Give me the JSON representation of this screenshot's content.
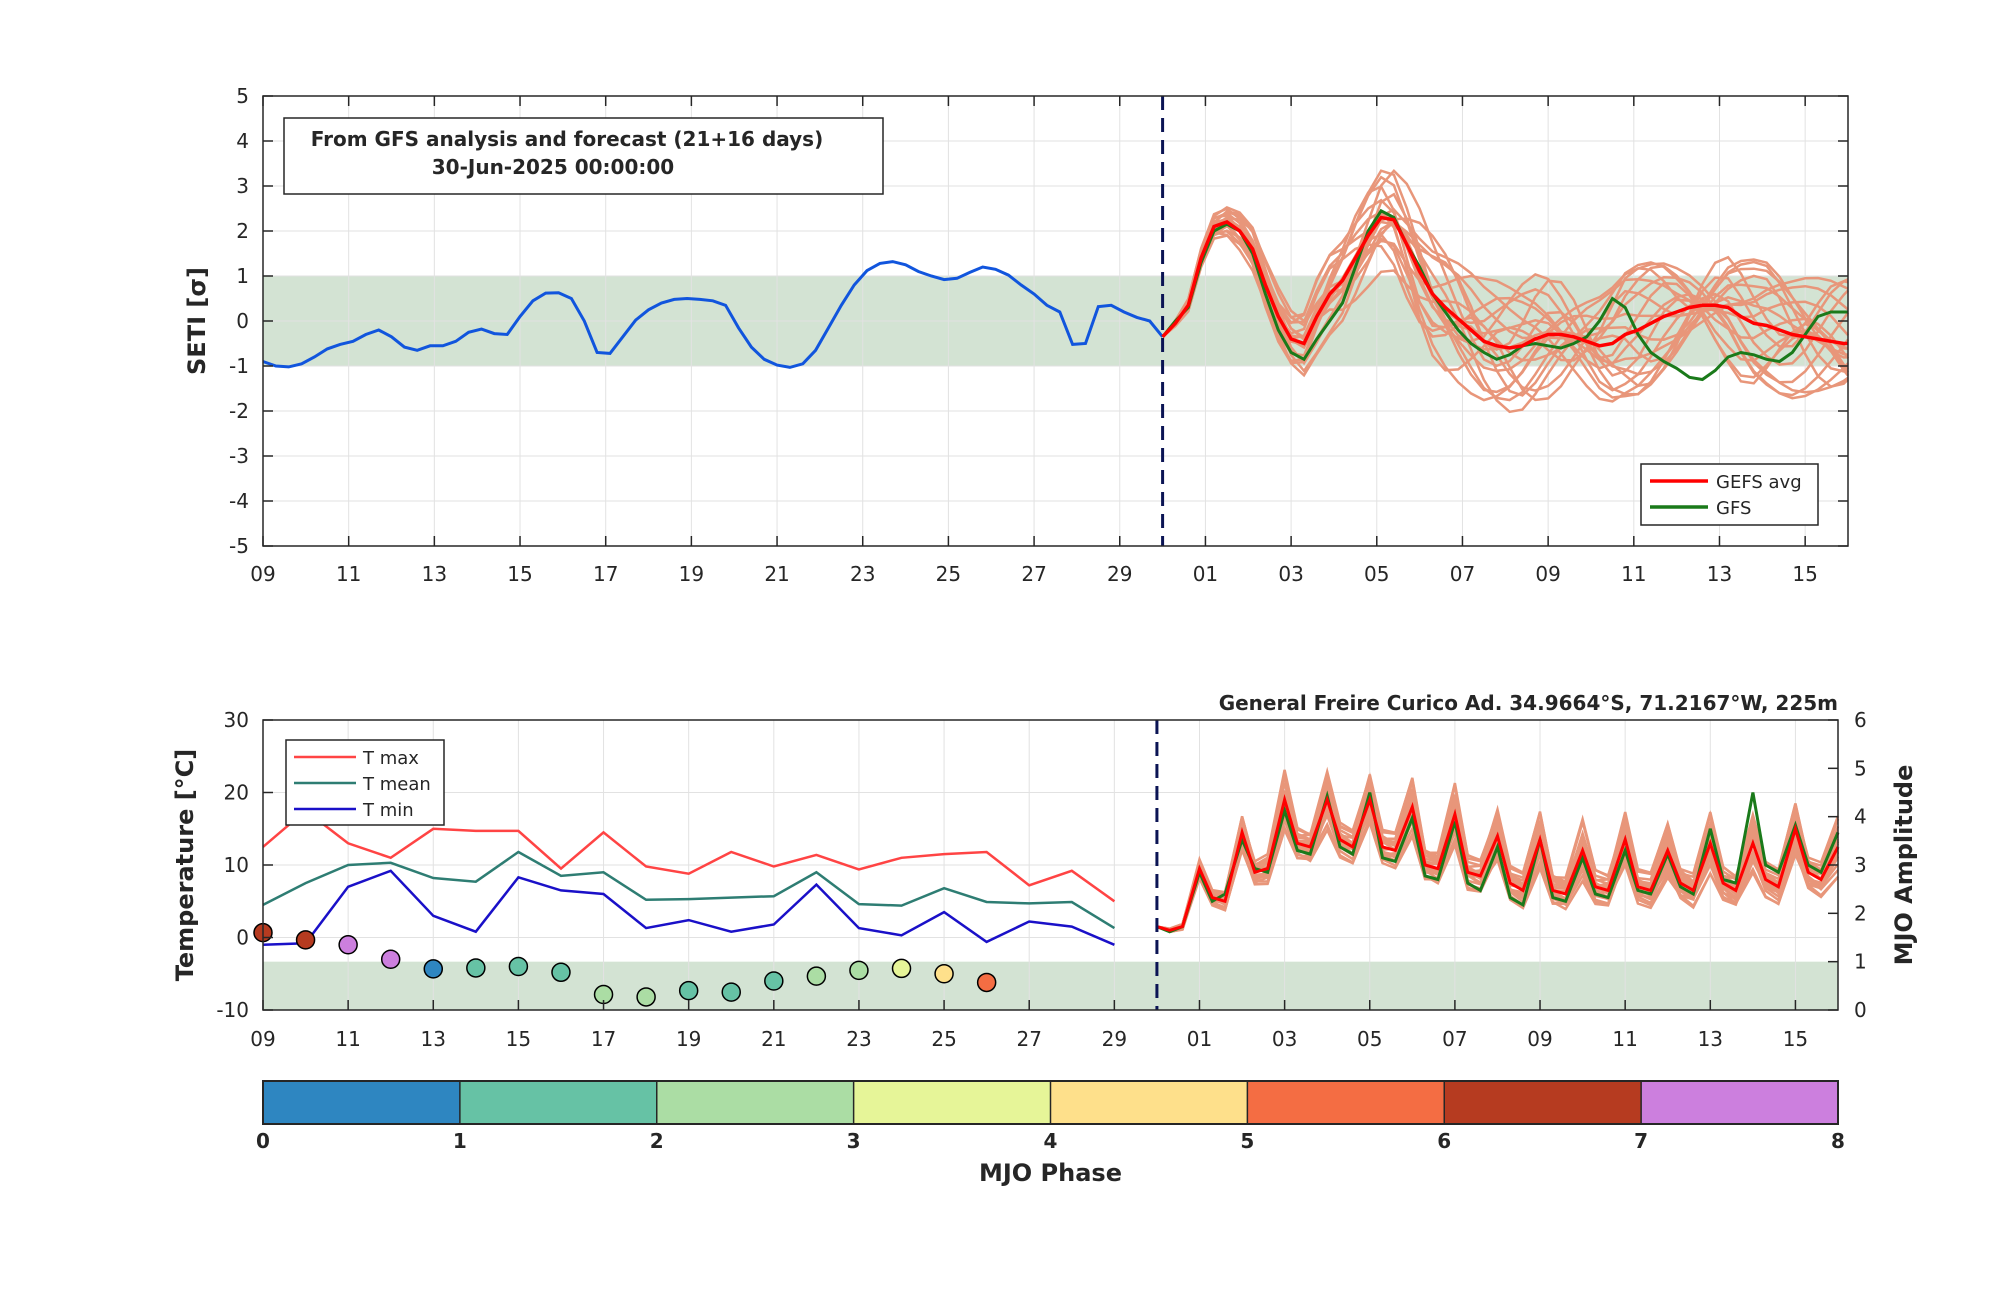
{
  "colors": {
    "analysis": "#1155dd",
    "gefs_avg": "#ff0000",
    "gfs": "#1a7a1a",
    "member": "#e8967a",
    "band": "#d3e3d3",
    "tmax": "#ff4444",
    "tmean": "#2e7d73",
    "tmin": "#1a10c8",
    "divider": "#0b1454"
  },
  "chart_data": [
    {
      "type": "line",
      "panel": "seti",
      "info_box": {
        "line1": "From GFS analysis and forecast (21+16 days)",
        "line2": "30-Jun-2025 00:00:00"
      },
      "ylabel": "SETI [σ]",
      "ylim": [
        -5,
        5
      ],
      "yticks": [
        "5",
        "4",
        "3",
        "2",
        "1",
        "0",
        "-1",
        "-2",
        "-3",
        "-4",
        "-5"
      ],
      "xlim": [
        0,
        37
      ],
      "xticks": [
        "09",
        "11",
        "13",
        "15",
        "17",
        "19",
        "21",
        "23",
        "25",
        "27",
        "29",
        "01",
        "03",
        "05",
        "07",
        "09",
        "11",
        "13",
        "15"
      ],
      "x_tick_values": [
        0,
        2,
        4,
        6,
        8,
        10,
        12,
        14,
        16,
        18,
        20,
        22,
        24,
        26,
        28,
        30,
        32,
        34,
        36
      ],
      "grid": true,
      "legend_position": "bottom-right",
      "band": [
        -1,
        1
      ],
      "forecast_start": 21,
      "legend": [
        {
          "key": "gefs_avg",
          "label": "GEFS avg"
        },
        {
          "key": "gfs",
          "label": "GFS"
        }
      ],
      "series_analysis": {
        "x": [
          0,
          0.3,
          0.6,
          0.9,
          1.2,
          1.5,
          1.8,
          2.1,
          2.4,
          2.7,
          3.0,
          3.3,
          3.6,
          3.9,
          4.2,
          4.5,
          4.8,
          5.1,
          5.4,
          5.7,
          6.0,
          6.3,
          6.6,
          6.9,
          7.2,
          7.5,
          7.8,
          8.1,
          8.4,
          8.7,
          9.0,
          9.3,
          9.6,
          9.9,
          10.2,
          10.5,
          10.8,
          11.1,
          11.4,
          11.7,
          12.0,
          12.3,
          12.6,
          12.9,
          13.2,
          13.5,
          13.8,
          14.1,
          14.4,
          14.7,
          15.0,
          15.3,
          15.6,
          15.9,
          16.2,
          16.5,
          16.8,
          17.1,
          17.4,
          17.7,
          18.0,
          18.3,
          18.6,
          18.9,
          19.2,
          19.5,
          19.8,
          20.1,
          20.4,
          20.7,
          21.0
        ],
        "y": [
          -0.9,
          -1.0,
          -1.02,
          -0.95,
          -0.8,
          -0.62,
          -0.52,
          -0.45,
          -0.3,
          -0.2,
          -0.35,
          -0.58,
          -0.65,
          -0.55,
          -0.55,
          -0.45,
          -0.25,
          -0.18,
          -0.28,
          -0.3,
          0.1,
          0.45,
          0.62,
          0.63,
          0.5,
          0.0,
          -0.7,
          -0.72,
          -0.35,
          0.02,
          0.25,
          0.4,
          0.48,
          0.5,
          0.48,
          0.45,
          0.35,
          -0.15,
          -0.58,
          -0.85,
          -0.98,
          -1.03,
          -0.95,
          -0.65,
          -0.15,
          0.35,
          0.8,
          1.12,
          1.28,
          1.32,
          1.25,
          1.1,
          1.0,
          0.92,
          0.95,
          1.08,
          1.2,
          1.15,
          1.02,
          0.8,
          0.6,
          0.35,
          0.2,
          -0.52,
          -0.5,
          0.32,
          0.35,
          0.2,
          0.08,
          0.0,
          -0.35
        ]
      },
      "series_gefs_avg": {
        "x": [
          21.0,
          21.3,
          21.6,
          21.9,
          22.2,
          22.5,
          22.8,
          23.1,
          23.4,
          23.7,
          24.0,
          24.3,
          24.6,
          24.9,
          25.2,
          25.5,
          25.8,
          26.1,
          26.4,
          26.7,
          27.0,
          27.3,
          27.6,
          27.9,
          28.2,
          28.5,
          28.8,
          29.1,
          29.4,
          29.7,
          30.0,
          30.3,
          30.6,
          30.9,
          31.2,
          31.5,
          31.8,
          32.1,
          32.4,
          32.7,
          33.0,
          33.3,
          33.6,
          33.9,
          34.2,
          34.5,
          34.8,
          35.1,
          35.4,
          35.7,
          36.0,
          36.3,
          36.6,
          36.9,
          37.0
        ],
        "y": [
          -0.35,
          -0.05,
          0.35,
          1.4,
          2.1,
          2.2,
          2.0,
          1.6,
          0.8,
          0.1,
          -0.4,
          -0.5,
          0.1,
          0.6,
          0.9,
          1.4,
          1.9,
          2.3,
          2.25,
          1.7,
          1.1,
          0.6,
          0.3,
          0.05,
          -0.2,
          -0.45,
          -0.55,
          -0.6,
          -0.55,
          -0.4,
          -0.3,
          -0.3,
          -0.35,
          -0.45,
          -0.55,
          -0.5,
          -0.3,
          -0.2,
          -0.05,
          0.1,
          0.2,
          0.3,
          0.35,
          0.35,
          0.3,
          0.1,
          -0.05,
          -0.1,
          -0.2,
          -0.3,
          -0.35,
          -0.4,
          -0.45,
          -0.5,
          -0.5
        ]
      },
      "series_gfs": {
        "x": [
          21.0,
          21.3,
          21.6,
          21.9,
          22.2,
          22.5,
          22.8,
          23.1,
          23.4,
          23.7,
          24.0,
          24.3,
          24.6,
          24.9,
          25.2,
          25.5,
          25.8,
          26.1,
          26.4,
          26.7,
          27.0,
          27.3,
          27.6,
          27.9,
          28.2,
          28.5,
          28.8,
          29.1,
          29.4,
          29.7,
          30.0,
          30.3,
          30.6,
          30.9,
          31.2,
          31.5,
          31.8,
          32.1,
          32.4,
          32.7,
          33.0,
          33.3,
          33.6,
          33.9,
          34.2,
          34.5,
          34.8,
          35.1,
          35.4,
          35.7,
          36.0,
          36.3,
          36.6,
          36.9,
          37.0
        ],
        "y": [
          -0.35,
          0.0,
          0.3,
          1.3,
          2.0,
          2.15,
          2.0,
          1.5,
          0.6,
          -0.2,
          -0.7,
          -0.85,
          -0.4,
          0.0,
          0.4,
          1.2,
          2.0,
          2.45,
          2.3,
          1.7,
          1.2,
          0.6,
          0.2,
          -0.2,
          -0.5,
          -0.7,
          -0.85,
          -0.75,
          -0.55,
          -0.5,
          -0.55,
          -0.6,
          -0.5,
          -0.35,
          0.0,
          0.5,
          0.3,
          -0.3,
          -0.7,
          -0.9,
          -1.05,
          -1.25,
          -1.3,
          -1.1,
          -0.8,
          -0.7,
          -0.75,
          -0.85,
          -0.9,
          -0.7,
          -0.3,
          0.1,
          0.2,
          0.2,
          0.2
        ]
      }
    },
    {
      "type": "line",
      "panel": "temperature_mjo",
      "title": "General Freire Curico Ad. 34.9664°S, 71.2167°W, 225m",
      "ylabel": "Temperature [°C]",
      "ylim": [
        -10,
        30
      ],
      "yticks": [
        "30",
        "20",
        "10",
        "0",
        "-10"
      ],
      "y2label": "MJO Amplitude",
      "y2lim": [
        0,
        6
      ],
      "y2ticks": [
        "6",
        "5",
        "4",
        "3",
        "2",
        "1",
        "0"
      ],
      "xlim": [
        0,
        37
      ],
      "xticks": [
        "09",
        "11",
        "13",
        "15",
        "17",
        "19",
        "21",
        "23",
        "25",
        "27",
        "29",
        "01",
        "03",
        "05",
        "07",
        "09",
        "11",
        "13",
        "15"
      ],
      "x_tick_values": [
        0,
        2,
        4,
        6,
        8,
        10,
        12,
        14,
        16,
        18,
        20,
        22,
        24,
        26,
        28,
        30,
        32,
        34,
        36
      ],
      "grid": true,
      "legend_position": "top-left",
      "band_amplitude": [
        0,
        1
      ],
      "forecast_start": 21,
      "legend": [
        {
          "key": "tmax",
          "label": "T max"
        },
        {
          "key": "tmean",
          "label": "T mean"
        },
        {
          "key": "tmin",
          "label": "T min"
        }
      ],
      "days": [
        0,
        1,
        2,
        3,
        4,
        5,
        6,
        7,
        8,
        9,
        10,
        11,
        12,
        13,
        14,
        15,
        16,
        17,
        18,
        19,
        20
      ],
      "tmax": [
        12.5,
        17.5,
        13.0,
        11.0,
        15.0,
        14.7,
        14.7,
        9.5,
        14.5,
        9.8,
        8.8,
        11.8,
        9.8,
        11.4,
        9.4,
        11.0,
        11.5,
        11.8,
        7.2,
        9.2,
        5.0
      ],
      "tmean": [
        4.5,
        7.5,
        10.0,
        10.3,
        8.2,
        7.7,
        11.8,
        8.5,
        9.0,
        5.2,
        5.3,
        5.5,
        5.7,
        9.0,
        4.6,
        4.4,
        6.8,
        4.9,
        4.7,
        4.9,
        1.3
      ],
      "tmin": [
        -1.0,
        -0.8,
        7.0,
        9.2,
        3.0,
        0.8,
        8.3,
        6.5,
        6.0,
        1.3,
        2.4,
        0.8,
        1.8,
        7.3,
        1.3,
        0.3,
        3.5,
        -0.6,
        2.2,
        1.5,
        -1.0
      ],
      "mjo_days": [
        0,
        1,
        2,
        3,
        4,
        5,
        6,
        7,
        8,
        9,
        10,
        11,
        12,
        13,
        14,
        15,
        16,
        17
      ],
      "mjo_amplitude": [
        1.6,
        1.45,
        1.35,
        1.05,
        0.85,
        0.87,
        0.9,
        0.78,
        0.32,
        0.27,
        0.4,
        0.37,
        0.6,
        0.7,
        0.82,
        0.86,
        0.75,
        0.57
      ],
      "mjo_phase": [
        6.5,
        6.5,
        7.5,
        7.5,
        0.5,
        1.5,
        1.5,
        1.5,
        2.5,
        2.5,
        1.5,
        1.5,
        1.5,
        2.5,
        2.5,
        3.5,
        4.5,
        5.5
      ],
      "fc_x": [
        21.0,
        21.3,
        21.6,
        22.0,
        22.3,
        22.6,
        23.0,
        23.3,
        23.6,
        24.0,
        24.3,
        24.6,
        25.0,
        25.3,
        25.6,
        26.0,
        26.3,
        26.6,
        27.0,
        27.3,
        27.6,
        28.0,
        28.3,
        28.6,
        29.0,
        29.3,
        29.6,
        30.0,
        30.3,
        30.6,
        31.0,
        31.3,
        31.6,
        32.0,
        32.3,
        32.6,
        33.0,
        33.3,
        33.6,
        34.0,
        34.3,
        34.6,
        35.0,
        35.3,
        35.6,
        36.0,
        36.3,
        36.6,
        37.0
      ],
      "fc_gefs_avg": [
        1.5,
        1.0,
        1.5,
        9.5,
        5.5,
        5.0,
        14.5,
        9.0,
        9.5,
        19.0,
        13.0,
        12.5,
        19.0,
        13.5,
        12.5,
        19.0,
        12.5,
        12.0,
        18.0,
        10.0,
        9.5,
        17.0,
        9.0,
        8.5,
        14.0,
        7.5,
        6.5,
        13.5,
        6.5,
        6.0,
        12.0,
        7.0,
        6.5,
        13.5,
        7.0,
        6.5,
        12.0,
        7.5,
        6.5,
        13.0,
        7.5,
        6.5,
        13.0,
        8.0,
        7.0,
        15.0,
        9.0,
        8.0,
        12.5
      ],
      "fc_gfs": [
        1.5,
        0.8,
        1.5,
        9.0,
        5.0,
        6.0,
        13.5,
        9.5,
        9.0,
        17.5,
        12.0,
        11.5,
        19.5,
        12.5,
        11.5,
        20.0,
        11.0,
        10.5,
        16.5,
        8.5,
        8.0,
        16.0,
        7.5,
        6.5,
        12.5,
        5.5,
        4.5,
        13.5,
        5.5,
        5.0,
        11.0,
        6.0,
        5.5,
        12.0,
        6.5,
        6.0,
        11.5,
        7.0,
        6.0,
        15.0,
        8.0,
        7.5,
        20.0,
        10.0,
        9.0,
        15.5,
        10.0,
        9.0,
        14.5
      ]
    },
    {
      "type": "colorbar",
      "label": "MJO Phase",
      "ticks": [
        "0",
        "1",
        "2",
        "3",
        "4",
        "5",
        "6",
        "7",
        "8"
      ],
      "colors": [
        "#2e86c1",
        "#66c2a5",
        "#abdda4",
        "#e6f598",
        "#fee08b",
        "#f46d43",
        "#b63b20",
        "#cc7fde"
      ]
    }
  ]
}
